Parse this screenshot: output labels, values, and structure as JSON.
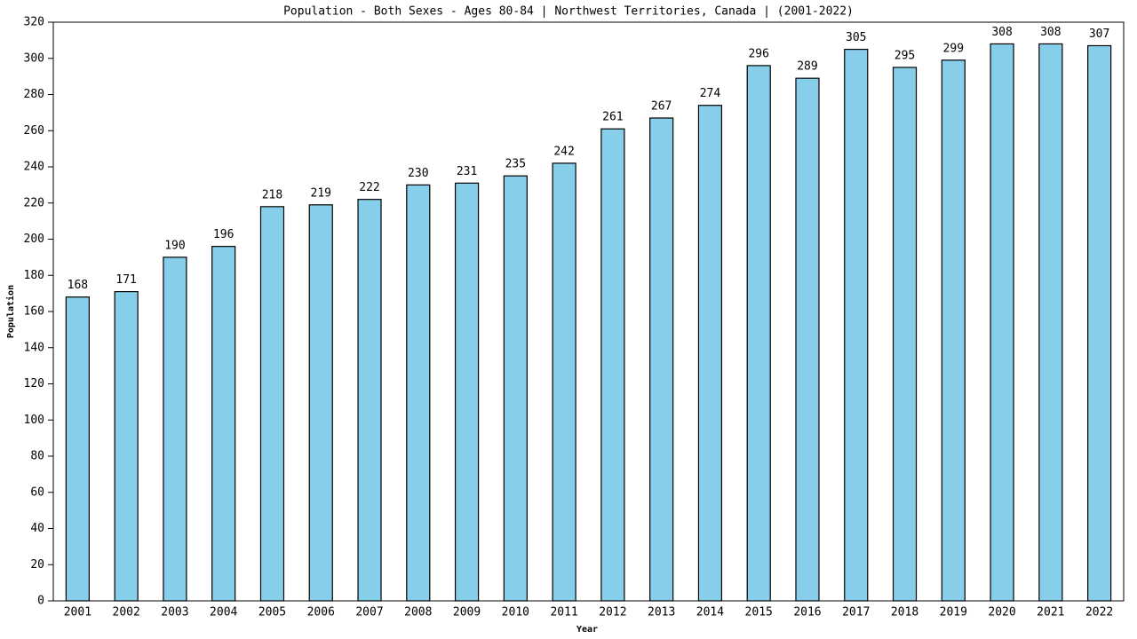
{
  "chart_data": {
    "type": "bar",
    "title": "Population - Both Sexes - Ages 80-84 | Northwest Territories, Canada |  (2001-2022)",
    "x_label": "Year",
    "y_label": "Population",
    "categories": [
      "2001",
      "2002",
      "2003",
      "2004",
      "2005",
      "2006",
      "2007",
      "2008",
      "2009",
      "2010",
      "2011",
      "2012",
      "2013",
      "2014",
      "2015",
      "2016",
      "2017",
      "2018",
      "2019",
      "2020",
      "2021",
      "2022"
    ],
    "values": [
      168,
      171,
      190,
      196,
      218,
      219,
      222,
      230,
      231,
      235,
      242,
      261,
      267,
      274,
      296,
      289,
      305,
      295,
      299,
      308,
      308,
      307
    ],
    "color": "#87ceeb",
    "ylim": [
      0,
      320
    ],
    "yticks": [
      0,
      20,
      40,
      60,
      80,
      100,
      120,
      140,
      160,
      180,
      200,
      220,
      240,
      260,
      280,
      300,
      320
    ],
    "grid": false
  }
}
